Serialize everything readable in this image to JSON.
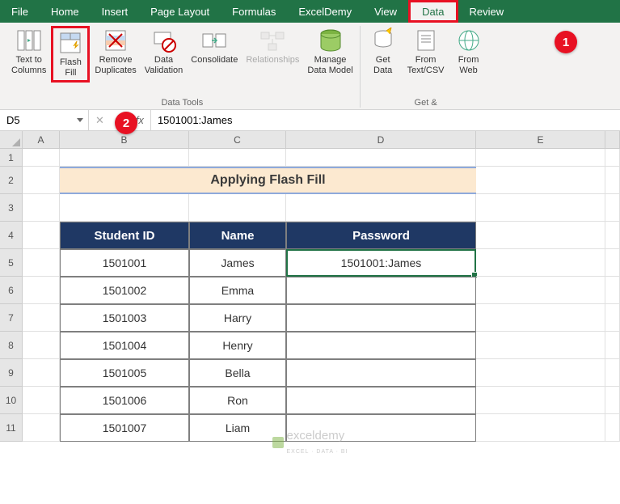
{
  "tabs": [
    "File",
    "Home",
    "Insert",
    "Page Layout",
    "Formulas",
    "ExcelDemy",
    "View",
    "Data",
    "Review"
  ],
  "active_tab": "Data",
  "ribbon": {
    "text_to_columns": "Text to\nColumns",
    "flash_fill": "Flash\nFill",
    "remove_duplicates": "Remove\nDuplicates",
    "data_validation": "Data\nValidation",
    "consolidate": "Consolidate",
    "relationships": "Relationships",
    "manage_data_model": "Manage\nData Model",
    "get_data": "Get\nData",
    "from_text_csv": "From\nText/CSV",
    "from_web": "From\nWeb",
    "group_data_tools": "Data Tools",
    "group_get": "Get &"
  },
  "name_box": "D5",
  "formula_value": "1501001:James",
  "badges": {
    "one": "1",
    "two": "2"
  },
  "columns": [
    "A",
    "B",
    "C",
    "D",
    "E"
  ],
  "row_numbers": [
    "1",
    "2",
    "3",
    "4",
    "5",
    "6",
    "7",
    "8",
    "9",
    "10",
    "11"
  ],
  "title_text": "Applying Flash Fill",
  "headers": {
    "id": "Student ID",
    "name": "Name",
    "pwd": "Password"
  },
  "rows": [
    {
      "id": "1501001",
      "name": "James",
      "pwd": "1501001:James"
    },
    {
      "id": "1501002",
      "name": "Emma",
      "pwd": ""
    },
    {
      "id": "1501003",
      "name": "Harry",
      "pwd": ""
    },
    {
      "id": "1501004",
      "name": "Henry",
      "pwd": ""
    },
    {
      "id": "1501005",
      "name": "Bella",
      "pwd": ""
    },
    {
      "id": "1501006",
      "name": "Ron",
      "pwd": ""
    },
    {
      "id": "1501007",
      "name": "Liam",
      "pwd": ""
    }
  ],
  "fx_cancel": "✕",
  "fx_accept": "✓",
  "fx_label": "fx",
  "watermark": "exceldemy",
  "watermark_sub": "EXCEL · DATA · BI",
  "colors": {
    "ribbon_green": "#217346",
    "highlight_red": "#e81123",
    "header_navy": "#1f3864",
    "title_band": "#fce9d0"
  }
}
